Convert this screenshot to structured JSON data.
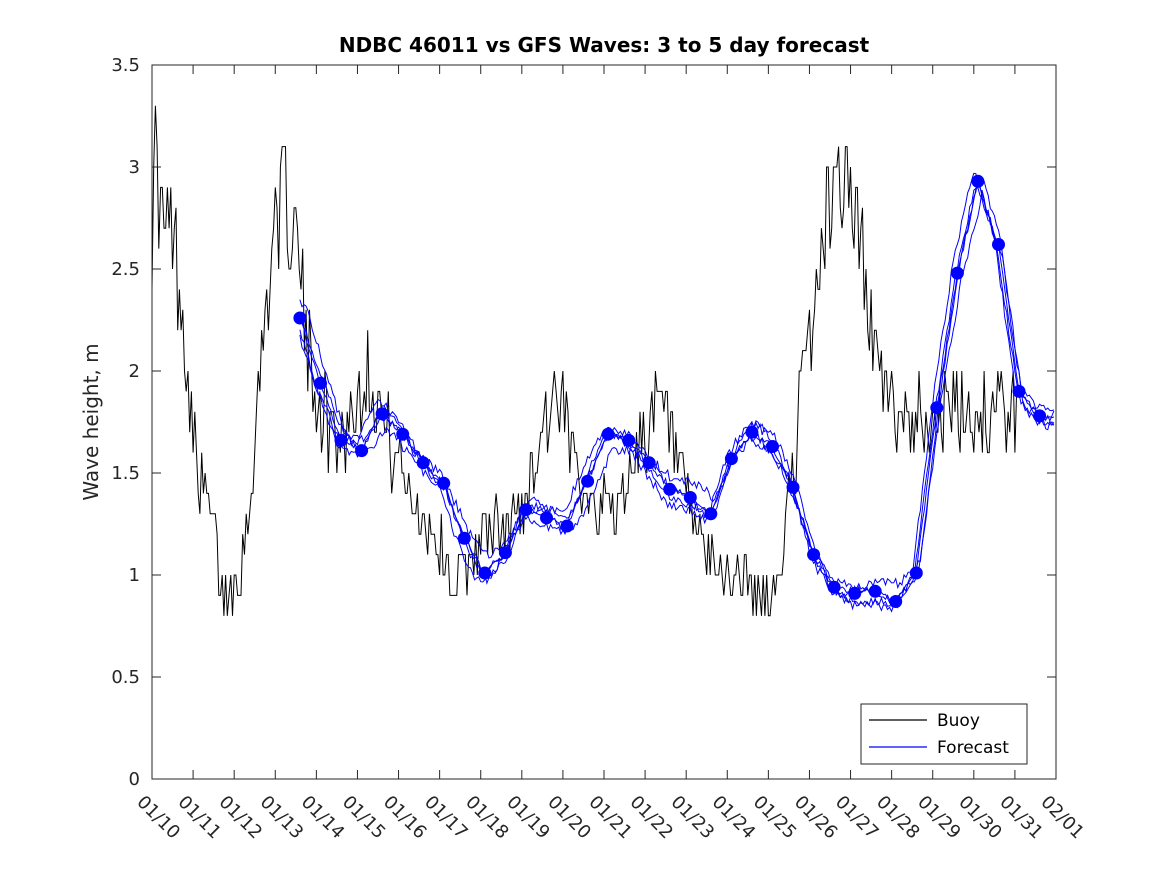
{
  "chart_data": {
    "type": "line",
    "title": "NDBC 46011 vs GFS Waves: 3 to 5 day forecast",
    "xlabel": "",
    "ylabel": "Wave height, m",
    "xlim": [
      0,
      22
    ],
    "ylim": [
      0,
      3.5
    ],
    "x_tick_labels": [
      "01/10",
      "01/11",
      "01/12",
      "01/13",
      "01/14",
      "01/15",
      "01/16",
      "01/17",
      "01/18",
      "01/19",
      "01/20",
      "01/21",
      "01/22",
      "01/23",
      "01/24",
      "01/25",
      "01/26",
      "01/27",
      "01/28",
      "01/29",
      "01/30",
      "01/31",
      "02/01"
    ],
    "y_ticks": [
      0,
      0.5,
      1,
      1.5,
      2,
      2.5,
      3,
      3.5
    ],
    "y_tick_labels": [
      "0",
      "0.5",
      "1",
      "1.5",
      "2",
      "2.5",
      "3",
      "3.5"
    ],
    "legend": {
      "position": "bottom-right",
      "entries": [
        {
          "name": "Buoy",
          "color": "#000000"
        },
        {
          "name": "Forecast",
          "color": "#0000ff"
        }
      ]
    },
    "series": [
      {
        "name": "Buoy",
        "color": "#000000",
        "description": "observed wave height, key points (days since 01/10, m)",
        "x": [
          0,
          0.05,
          0.15,
          0.3,
          0.5,
          0.7,
          0.85,
          1.0,
          1.1,
          1.3,
          1.5,
          1.6,
          1.75,
          1.9,
          2.0,
          2.2,
          2.4,
          2.6,
          2.8,
          2.95,
          3.1,
          3.25,
          3.4,
          3.55,
          3.65,
          3.75,
          3.9,
          4.1,
          4.3,
          4.5,
          4.7,
          4.9,
          5.1,
          5.3,
          5.5,
          5.7,
          5.9,
          6.1,
          6.3,
          6.5,
          6.7,
          6.9,
          7.1,
          7.3,
          7.5,
          7.7,
          7.9,
          8.1,
          8.3,
          8.5,
          8.7,
          8.9,
          9.1,
          9.3,
          9.5,
          9.7,
          9.9,
          10.1,
          10.3,
          10.5,
          10.7,
          10.9,
          11.1,
          11.3,
          11.5,
          11.7,
          11.9,
          12.1,
          12.3,
          12.5,
          12.7,
          12.9,
          13.1,
          13.3,
          13.5,
          13.7,
          13.9,
          14.1,
          14.3,
          14.5,
          14.7,
          14.9,
          15.1,
          15.3,
          15.5,
          15.7,
          15.9,
          16.1,
          16.3,
          16.5,
          16.7,
          16.9,
          17.1,
          17.3,
          17.5,
          17.7,
          17.9,
          18.1,
          18.3,
          18.5,
          18.7,
          18.9,
          19.1,
          19.3,
          19.5,
          19.7,
          19.9,
          20.05,
          20.2,
          20.35,
          20.5,
          20.65,
          20.8,
          20.95,
          21.05
        ],
        "y": [
          2.7,
          3.2,
          2.9,
          2.7,
          2.7,
          2.4,
          2.0,
          1.7,
          1.5,
          1.4,
          1.25,
          1.05,
          0.9,
          0.95,
          0.95,
          1.1,
          1.4,
          1.9,
          2.4,
          2.7,
          2.8,
          2.9,
          2.7,
          2.6,
          2.4,
          2.1,
          2.0,
          1.85,
          1.75,
          1.7,
          1.7,
          1.8,
          1.95,
          2.0,
          1.85,
          1.7,
          1.6,
          1.5,
          1.4,
          1.3,
          1.25,
          1.2,
          1.1,
          1.0,
          1.0,
          1.05,
          1.15,
          1.2,
          1.25,
          1.2,
          1.25,
          1.3,
          1.4,
          1.55,
          1.7,
          1.85,
          1.8,
          1.7,
          1.55,
          1.45,
          1.4,
          1.35,
          1.35,
          1.3,
          1.4,
          1.55,
          1.65,
          1.75,
          1.8,
          1.75,
          1.6,
          1.45,
          1.3,
          1.2,
          1.1,
          1.05,
          1.0,
          1.0,
          1.0,
          0.95,
          0.9,
          0.85,
          0.9,
          1.05,
          1.35,
          1.7,
          2.0,
          2.3,
          2.6,
          2.85,
          3.0,
          2.95,
          2.8,
          2.5,
          2.2,
          2.0,
          1.8,
          1.8,
          1.8,
          1.8,
          1.8,
          1.8,
          1.8,
          1.8,
          1.8,
          1.8,
          1.8,
          1.8,
          1.8,
          1.8,
          1.8,
          1.8,
          1.8,
          1.8,
          1.8
        ]
      },
      {
        "name": "Forecast",
        "color": "#0000ff",
        "description": "forecast markers (days since 01/10, m)",
        "x": [
          3.6,
          4.1,
          4.6,
          5.1,
          5.6,
          6.1,
          6.6,
          7.1,
          7.6,
          8.1,
          8.6,
          9.1,
          9.6,
          10.1,
          10.6,
          11.1,
          11.6,
          12.1,
          12.6,
          13.1,
          13.6,
          14.1,
          14.6,
          15.1,
          15.6,
          16.1,
          16.6,
          17.1,
          17.6,
          18.1,
          18.6,
          19.1,
          19.6,
          20.1,
          20.6,
          21.1,
          21.6
        ],
        "y": [
          2.26,
          1.94,
          1.66,
          1.61,
          1.79,
          1.69,
          1.55,
          1.45,
          1.18,
          1.01,
          1.11,
          1.32,
          1.28,
          1.24,
          1.46,
          1.69,
          1.66,
          1.55,
          1.42,
          1.38,
          1.3,
          1.57,
          1.7,
          1.63,
          1.43,
          1.1,
          0.94,
          0.91,
          0.92,
          0.87,
          1.01,
          1.82,
          2.48,
          2.93,
          2.62,
          1.9,
          1.78
        ]
      }
    ]
  }
}
